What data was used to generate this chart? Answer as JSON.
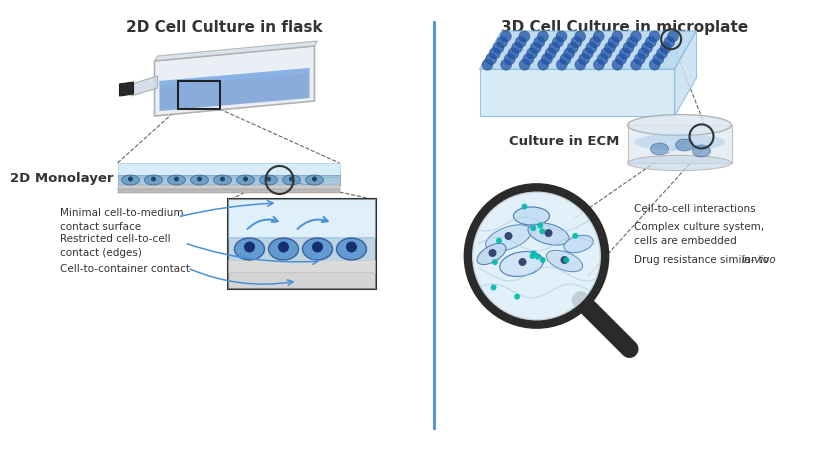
{
  "title_left": "2D Cell Culture in flask",
  "title_right": "3D Cell Culture in microplate",
  "label_2d_monolayer": "2D Monolayer",
  "label_culture_ecm": "Culture in ECM",
  "left_ann0": "Minimal cell-to-medium\ncontact surface",
  "left_ann1": "Restricted cell-to-cell\ncontact (edges)",
  "left_ann2": "Cell-to-container contact",
  "right_ann0": "Cell-to-cell interactions",
  "right_ann1": "Complex culture system,\ncells are embedded",
  "right_ann2_normal": "Drug resistance similar to ",
  "right_ann2_italic": "in-vivo",
  "divider_color": "#4a90d9",
  "bg": "#ffffff",
  "tc": "#333333",
  "blue": "#4a90d9",
  "lblue": "#b8c8e8",
  "dg": "#555555"
}
